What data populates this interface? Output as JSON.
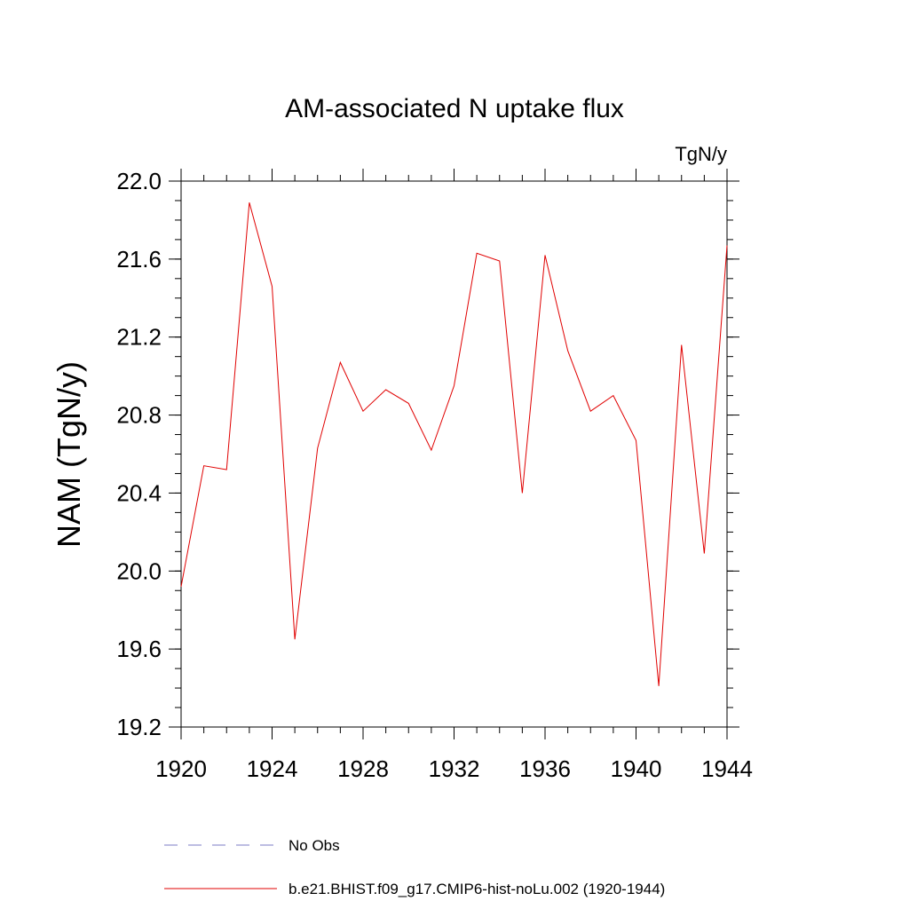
{
  "chart_data": {
    "type": "line",
    "title": "AM-associated N uptake flux",
    "units_label": "TgN/y",
    "ylabel": "NAM  (TgN/y)",
    "xlabel": "",
    "xlim": [
      1920,
      1944
    ],
    "ylim": [
      19.2,
      22.0
    ],
    "x_ticks": [
      1920,
      1924,
      1928,
      1932,
      1936,
      1940,
      1944
    ],
    "x_tick_labels": [
      "1920",
      "1924",
      "1928",
      "1932",
      "1936",
      "1940",
      "1944"
    ],
    "y_ticks": [
      19.2,
      19.6,
      20.0,
      20.4,
      20.8,
      21.2,
      21.6,
      22.0
    ],
    "y_tick_labels": [
      "19.2",
      "19.6",
      "20.0",
      "20.4",
      "20.8",
      "21.2",
      "21.6",
      "22.0"
    ],
    "grid": false,
    "legend_position": "bottom",
    "series": [
      {
        "name": "No Obs",
        "color": "#7b7bc4",
        "style": "dashed",
        "x": [],
        "values": []
      },
      {
        "name": "b.e21.BHIST.f09_g17.CMIP6-hist-noLu.002 (1920-1944)",
        "color": "#e00000",
        "style": "solid",
        "x": [
          1920,
          1921,
          1922,
          1923,
          1924,
          1925,
          1926,
          1927,
          1928,
          1929,
          1930,
          1931,
          1932,
          1933,
          1934,
          1935,
          1936,
          1937,
          1938,
          1939,
          1940,
          1941,
          1942,
          1943,
          1944
        ],
        "values": [
          19.92,
          20.54,
          20.52,
          21.89,
          21.46,
          19.65,
          20.63,
          21.07,
          20.82,
          20.93,
          20.86,
          20.62,
          20.95,
          21.63,
          21.59,
          20.4,
          21.62,
          21.13,
          20.82,
          20.9,
          20.67,
          19.41,
          21.16,
          20.09,
          21.67
        ]
      }
    ]
  }
}
